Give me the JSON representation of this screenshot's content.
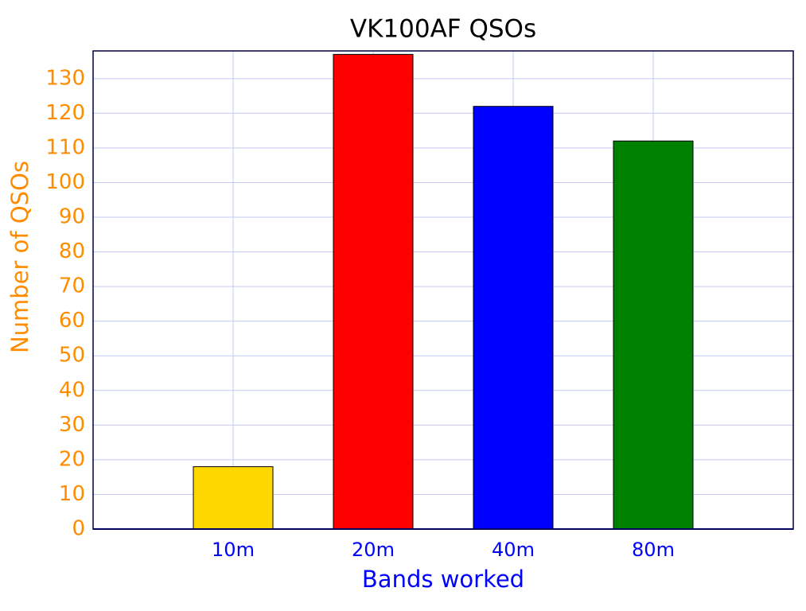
{
  "chart_data": {
    "type": "bar",
    "title": "VK100AF QSOs",
    "x_label": "Bands worked",
    "y_label": "Number of QSOs",
    "categories": [
      "10m",
      "20m",
      "40m",
      "80m"
    ],
    "values": [
      18,
      137,
      122,
      112
    ],
    "colors": [
      "#ffd700",
      "#ff0000",
      "#0000ff",
      "#008000"
    ],
    "ylim": [
      0,
      138
    ],
    "yticks": [
      0,
      10,
      20,
      30,
      40,
      50,
      60,
      70,
      80,
      90,
      100,
      110,
      120,
      130
    ],
    "grid": true
  }
}
